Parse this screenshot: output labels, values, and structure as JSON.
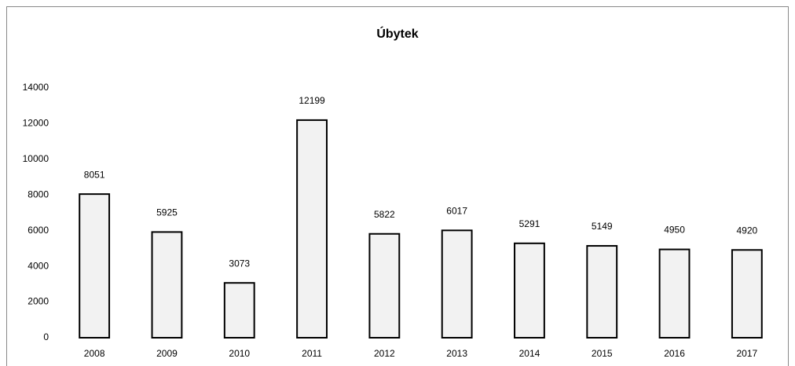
{
  "chart_data": {
    "type": "bar",
    "title": "Úbytek",
    "categories": [
      "2008",
      "2009",
      "2010",
      "2011",
      "2012",
      "2013",
      "2014",
      "2015",
      "2016",
      "2017"
    ],
    "values": [
      8051,
      5925,
      3073,
      12199,
      5822,
      6017,
      5291,
      5149,
      4950,
      4920
    ],
    "color": "#f2f2f2",
    "ylim": [
      0,
      14000
    ],
    "yticks": [
      0,
      2000,
      4000,
      6000,
      8000,
      10000,
      12000,
      14000
    ],
    "grid": false
  }
}
